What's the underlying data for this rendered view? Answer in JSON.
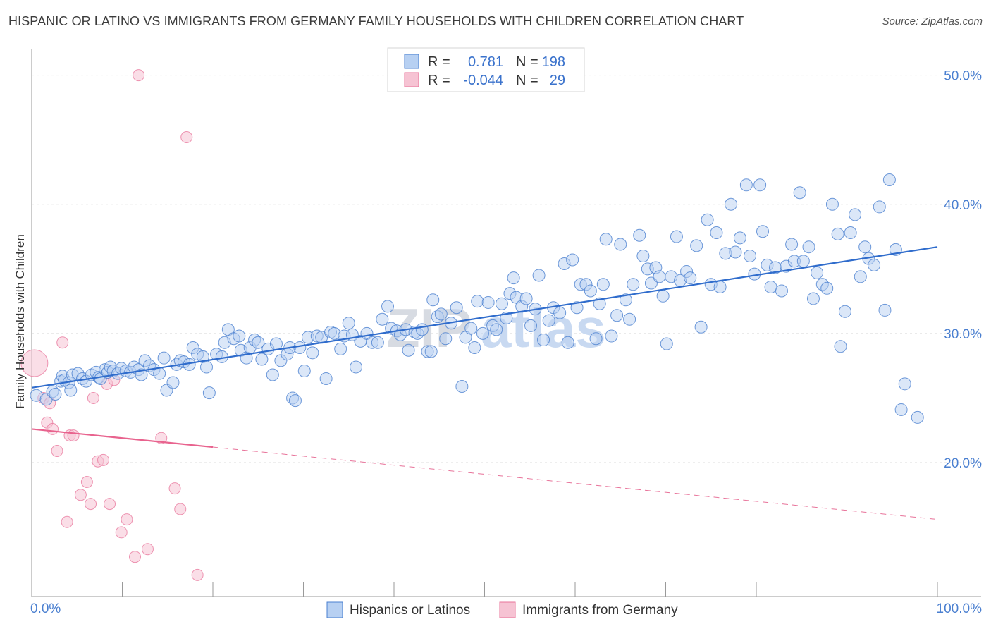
{
  "title": "HISPANIC OR LATINO VS IMMIGRANTS FROM GERMANY FAMILY HOUSEHOLDS WITH CHILDREN CORRELATION CHART",
  "source": "Source: ZipAtlas.com",
  "watermark": {
    "zip": "ZIP",
    "atlas": "atlas"
  },
  "colors": {
    "blue": "#4a7fd0",
    "blue_fill": "#b7d0f2",
    "pink": "#e8739a",
    "pink_fill": "#f6c3d3"
  },
  "chart_data": {
    "type": "scatter",
    "ylabel": "Family Households with Children",
    "xlim": [
      0,
      100
    ],
    "ylim": [
      10.5,
      52
    ],
    "x_tick_labels": [
      "0.0%",
      "100.0%"
    ],
    "y_ticks": [
      {
        "value": 20,
        "label": "20.0%"
      },
      {
        "value": 30,
        "label": "30.0%"
      },
      {
        "value": 40,
        "label": "40.0%"
      },
      {
        "value": 50,
        "label": "50.0%"
      }
    ],
    "stats": [
      {
        "r_label": "R =",
        "r": "0.781",
        "n_label": "N =",
        "n": "198"
      },
      {
        "r_label": "R =",
        "r": "-0.044",
        "n_label": "N =",
        "n": "29"
      }
    ],
    "legend": [
      "Hispanics or Latinos",
      "Immigrants from Germany"
    ],
    "series": [
      {
        "name": "Hispanics or Latinos",
        "trend": {
          "x0": 0,
          "y0": 25.8,
          "x1": 100,
          "y1": 36.7
        },
        "points": [
          [
            0.5,
            25.2
          ],
          [
            1.6,
            24.9
          ],
          [
            2.3,
            25.5
          ],
          [
            2.6,
            25.3
          ],
          [
            3.2,
            26.3
          ],
          [
            3.4,
            26.7
          ],
          [
            3.6,
            26.4
          ],
          [
            4.1,
            26.2
          ],
          [
            4.3,
            25.6
          ],
          [
            4.5,
            26.8
          ],
          [
            5.1,
            26.9
          ],
          [
            5.6,
            26.5
          ],
          [
            6.0,
            26.3
          ],
          [
            6.6,
            26.8
          ],
          [
            7.1,
            27.0
          ],
          [
            7.4,
            26.6
          ],
          [
            7.6,
            26.5
          ],
          [
            8.1,
            27.2
          ],
          [
            8.4,
            27.0
          ],
          [
            8.7,
            27.4
          ],
          [
            9.0,
            27.1
          ],
          [
            9.5,
            26.9
          ],
          [
            9.9,
            27.3
          ],
          [
            10.4,
            27.1
          ],
          [
            10.9,
            27.0
          ],
          [
            11.3,
            27.4
          ],
          [
            11.8,
            27.2
          ],
          [
            12.1,
            26.8
          ],
          [
            12.5,
            27.9
          ],
          [
            13.0,
            27.5
          ],
          [
            13.5,
            27.2
          ],
          [
            14.1,
            26.9
          ],
          [
            14.6,
            28.1
          ],
          [
            14.9,
            25.6
          ],
          [
            15.6,
            26.2
          ],
          [
            16.0,
            27.6
          ],
          [
            16.4,
            27.9
          ],
          [
            16.8,
            27.8
          ],
          [
            17.4,
            27.6
          ],
          [
            17.8,
            28.9
          ],
          [
            18.3,
            28.4
          ],
          [
            18.9,
            28.2
          ],
          [
            19.3,
            27.4
          ],
          [
            19.6,
            25.4
          ],
          [
            20.4,
            28.4
          ],
          [
            21.0,
            28.2
          ],
          [
            21.3,
            29.3
          ],
          [
            21.7,
            30.3
          ],
          [
            22.3,
            29.6
          ],
          [
            22.9,
            29.8
          ],
          [
            23.1,
            28.7
          ],
          [
            23.7,
            28.1
          ],
          [
            24.1,
            28.9
          ],
          [
            24.6,
            29.5
          ],
          [
            25.0,
            29.3
          ],
          [
            25.4,
            28.0
          ],
          [
            26.1,
            28.8
          ],
          [
            26.6,
            26.8
          ],
          [
            27.0,
            29.2
          ],
          [
            27.5,
            27.9
          ],
          [
            28.2,
            28.4
          ],
          [
            28.5,
            28.9
          ],
          [
            28.8,
            25.0
          ],
          [
            29.1,
            24.8
          ],
          [
            29.6,
            28.9
          ],
          [
            30.1,
            27.1
          ],
          [
            30.5,
            29.7
          ],
          [
            31.0,
            28.5
          ],
          [
            31.5,
            29.8
          ],
          [
            32.0,
            29.7
          ],
          [
            32.5,
            26.5
          ],
          [
            33.0,
            30.1
          ],
          [
            33.4,
            30.0
          ],
          [
            34.1,
            28.8
          ],
          [
            34.5,
            29.8
          ],
          [
            35.0,
            30.8
          ],
          [
            35.4,
            29.9
          ],
          [
            35.8,
            27.4
          ],
          [
            36.3,
            29.4
          ],
          [
            37.0,
            30.0
          ],
          [
            37.6,
            29.3
          ],
          [
            38.2,
            29.3
          ],
          [
            38.7,
            31.1
          ],
          [
            39.3,
            32.1
          ],
          [
            39.7,
            30.4
          ],
          [
            40.3,
            30.2
          ],
          [
            40.7,
            29.9
          ],
          [
            41.3,
            30.3
          ],
          [
            41.6,
            28.7
          ],
          [
            42.3,
            30.1
          ],
          [
            42.6,
            30.0
          ],
          [
            43.1,
            30.3
          ],
          [
            43.7,
            28.6
          ],
          [
            44.1,
            28.6
          ],
          [
            44.3,
            32.6
          ],
          [
            44.8,
            31.3
          ],
          [
            45.2,
            31.5
          ],
          [
            45.7,
            29.6
          ],
          [
            46.3,
            30.8
          ],
          [
            46.9,
            32.0
          ],
          [
            47.5,
            25.9
          ],
          [
            47.9,
            29.7
          ],
          [
            48.5,
            30.4
          ],
          [
            48.9,
            28.9
          ],
          [
            49.2,
            32.5
          ],
          [
            49.8,
            30.0
          ],
          [
            50.4,
            32.4
          ],
          [
            50.9,
            30.6
          ],
          [
            51.3,
            30.3
          ],
          [
            51.9,
            32.3
          ],
          [
            52.4,
            31.2
          ],
          [
            52.8,
            33.1
          ],
          [
            53.2,
            34.3
          ],
          [
            53.5,
            32.8
          ],
          [
            54.1,
            32.1
          ],
          [
            54.6,
            32.7
          ],
          [
            55.1,
            30.6
          ],
          [
            55.6,
            31.9
          ],
          [
            56.0,
            34.5
          ],
          [
            56.5,
            29.5
          ],
          [
            57.1,
            31.0
          ],
          [
            57.6,
            32.0
          ],
          [
            58.3,
            31.6
          ],
          [
            58.8,
            35.4
          ],
          [
            59.2,
            29.3
          ],
          [
            59.7,
            35.7
          ],
          [
            60.2,
            32.0
          ],
          [
            60.6,
            33.8
          ],
          [
            61.2,
            33.8
          ],
          [
            61.7,
            33.3
          ],
          [
            62.3,
            29.6
          ],
          [
            62.7,
            32.3
          ],
          [
            63.1,
            33.8
          ],
          [
            63.4,
            37.3
          ],
          [
            64.0,
            29.8
          ],
          [
            64.6,
            31.4
          ],
          [
            65.0,
            36.9
          ],
          [
            65.6,
            32.6
          ],
          [
            66.0,
            31.1
          ],
          [
            66.4,
            33.8
          ],
          [
            67.1,
            37.6
          ],
          [
            67.5,
            36.0
          ],
          [
            68.0,
            35.0
          ],
          [
            68.4,
            33.9
          ],
          [
            68.9,
            35.1
          ],
          [
            69.3,
            34.4
          ],
          [
            69.7,
            32.9
          ],
          [
            70.1,
            29.2
          ],
          [
            70.6,
            34.4
          ],
          [
            71.2,
            37.5
          ],
          [
            71.6,
            34.1
          ],
          [
            72.3,
            34.8
          ],
          [
            72.7,
            34.3
          ],
          [
            73.4,
            36.8
          ],
          [
            73.9,
            30.5
          ],
          [
            74.6,
            38.8
          ],
          [
            75.0,
            33.8
          ],
          [
            75.6,
            37.8
          ],
          [
            76.0,
            33.6
          ],
          [
            76.6,
            36.2
          ],
          [
            77.2,
            40.0
          ],
          [
            77.7,
            36.3
          ],
          [
            78.2,
            37.4
          ],
          [
            78.9,
            41.5
          ],
          [
            79.3,
            36.0
          ],
          [
            79.8,
            34.6
          ],
          [
            80.4,
            41.5
          ],
          [
            80.7,
            37.9
          ],
          [
            81.2,
            35.3
          ],
          [
            81.6,
            33.6
          ],
          [
            82.1,
            35.1
          ],
          [
            82.8,
            33.3
          ],
          [
            83.3,
            35.2
          ],
          [
            83.9,
            36.9
          ],
          [
            84.2,
            35.6
          ],
          [
            84.8,
            40.9
          ],
          [
            85.2,
            35.6
          ],
          [
            85.8,
            36.7
          ],
          [
            86.3,
            32.7
          ],
          [
            86.7,
            34.7
          ],
          [
            87.3,
            33.8
          ],
          [
            87.8,
            33.5
          ],
          [
            88.4,
            40.0
          ],
          [
            89.0,
            37.7
          ],
          [
            89.3,
            29.0
          ],
          [
            89.8,
            31.7
          ],
          [
            90.4,
            37.8
          ],
          [
            90.9,
            39.2
          ],
          [
            91.5,
            34.4
          ],
          [
            92.0,
            36.7
          ],
          [
            92.4,
            35.8
          ],
          [
            93.0,
            35.3
          ],
          [
            93.6,
            39.8
          ],
          [
            94.2,
            31.8
          ],
          [
            94.7,
            41.9
          ],
          [
            95.4,
            36.5
          ],
          [
            96.0,
            24.1
          ],
          [
            96.4,
            26.1
          ],
          [
            97.8,
            23.5
          ]
        ]
      },
      {
        "name": "Immigrants from Germany",
        "trend_solid": {
          "x0": 0,
          "y0": 22.6,
          "x1": 20,
          "y1": 21.2
        },
        "trend_dashed": {
          "x0": 20,
          "y0": 21.2,
          "x1": 100,
          "y1": 15.6
        },
        "points": [
          [
            0.3,
            27.7
          ],
          [
            1.3,
            25.0
          ],
          [
            1.7,
            23.1
          ],
          [
            2.0,
            24.6
          ],
          [
            2.3,
            22.6
          ],
          [
            2.8,
            20.9
          ],
          [
            3.4,
            29.3
          ],
          [
            3.9,
            15.4
          ],
          [
            4.2,
            22.1
          ],
          [
            4.6,
            22.1
          ],
          [
            5.4,
            17.5
          ],
          [
            6.1,
            18.5
          ],
          [
            6.5,
            16.8
          ],
          [
            6.8,
            25.0
          ],
          [
            7.3,
            20.1
          ],
          [
            7.9,
            20.2
          ],
          [
            8.3,
            26.1
          ],
          [
            8.6,
            16.8
          ],
          [
            9.1,
            26.4
          ],
          [
            9.9,
            14.6
          ],
          [
            10.5,
            15.6
          ],
          [
            11.4,
            12.7
          ],
          [
            11.8,
            50.0
          ],
          [
            12.8,
            13.3
          ],
          [
            14.3,
            21.9
          ],
          [
            15.8,
            18.0
          ],
          [
            16.4,
            16.4
          ],
          [
            17.1,
            45.2
          ],
          [
            18.3,
            11.3
          ]
        ]
      }
    ]
  }
}
